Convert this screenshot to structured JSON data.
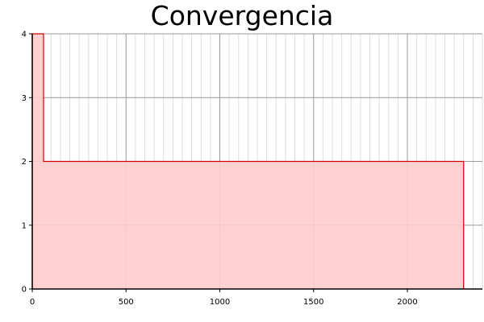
{
  "chart_data": {
    "type": "area",
    "title": "Convergencia",
    "xlabel": "",
    "ylabel": "",
    "xlim": [
      0,
      2400
    ],
    "ylim": [
      0,
      4
    ],
    "x_ticks": [
      0,
      500,
      1000,
      1500,
      2000
    ],
    "y_ticks": [
      0,
      1,
      2,
      3,
      4
    ],
    "x_minor_step": 50,
    "grid": true,
    "legend": "none",
    "series": [
      {
        "step": "post",
        "x": [
          0,
          60,
          2300
        ],
        "y": [
          4,
          2,
          2
        ],
        "line_color": "#cc0000",
        "fill_color": "#ffcccc"
      }
    ]
  }
}
